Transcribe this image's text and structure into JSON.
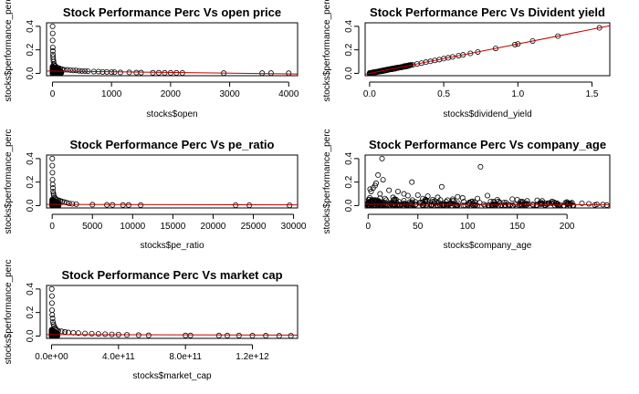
{
  "figure": {
    "background": "#ffffff",
    "fit_line_color": "#c00000",
    "point_color": "#000000",
    "point_style": "open-circle"
  },
  "chart_data": [
    {
      "type": "scatter",
      "title": "Stock Performance Perc Vs open price",
      "xlabel": "stocks$open",
      "ylabel": "stocks$performance_perc",
      "xlim": [
        -100,
        4150
      ],
      "ylim": [
        -0.02,
        0.43
      ],
      "xticks": [
        0,
        1000,
        2000,
        3000,
        4000
      ],
      "xtick_labels": [
        "0",
        "1000",
        "2000",
        "3000",
        "4000"
      ],
      "yticks": [
        0,
        0.2,
        0.4
      ],
      "ytick_labels": [
        "0.0",
        "0.2",
        "0.4"
      ],
      "dense_band": {
        "description": "many overlapping points",
        "x_range": [
          0,
          150
        ],
        "y_range": [
          0,
          0.06
        ]
      },
      "points": [
        [
          2,
          0.4
        ],
        [
          4,
          0.34
        ],
        [
          3,
          0.28
        ],
        [
          5,
          0.22
        ],
        [
          6,
          0.19
        ],
        [
          8,
          0.16
        ],
        [
          10,
          0.14
        ],
        [
          14,
          0.12
        ],
        [
          18,
          0.1
        ],
        [
          25,
          0.08
        ],
        [
          30,
          0.075
        ],
        [
          40,
          0.065
        ],
        [
          60,
          0.055
        ],
        [
          80,
          0.05
        ],
        [
          100,
          0.045
        ],
        [
          130,
          0.04
        ],
        [
          160,
          0.035
        ],
        [
          200,
          0.03
        ],
        [
          250,
          0.03
        ],
        [
          300,
          0.028
        ],
        [
          350,
          0.025
        ],
        [
          400,
          0.025
        ],
        [
          450,
          0.022
        ],
        [
          500,
          0.02
        ],
        [
          550,
          0.02
        ],
        [
          600,
          0.018
        ],
        [
          700,
          0.015
        ],
        [
          780,
          0.015
        ],
        [
          850,
          0.012
        ],
        [
          920,
          0.012
        ],
        [
          1000,
          0.01
        ],
        [
          1050,
          0.01
        ],
        [
          1150,
          0.008
        ],
        [
          1300,
          0.008
        ],
        [
          1420,
          0.006
        ],
        [
          1500,
          0.006
        ],
        [
          1700,
          0.005
        ],
        [
          1800,
          0.005
        ],
        [
          1900,
          0.004
        ],
        [
          2000,
          0.004
        ],
        [
          2100,
          0.004
        ],
        [
          2200,
          0.003
        ],
        [
          2900,
          0.002
        ],
        [
          3550,
          0.002
        ],
        [
          3700,
          0.002
        ],
        [
          4000,
          0.001
        ]
      ],
      "fit_line": [
        [
          -100,
          0.02
        ],
        [
          4150,
          -0.005
        ]
      ]
    },
    {
      "type": "scatter",
      "title": "Stock Performance Perc Vs Divident yield",
      "xlabel": "stocks$dividend_yield",
      "ylabel": "stocks$performance_perc",
      "xlim": [
        -0.03,
        1.62
      ],
      "ylim": [
        -0.02,
        0.43
      ],
      "xticks": [
        0,
        0.5,
        1.0,
        1.5
      ],
      "xtick_labels": [
        "0.0",
        "0.5",
        "1.0",
        "1.5"
      ],
      "yticks": [
        0,
        0.2,
        0.4
      ],
      "ytick_labels": [
        "0.0",
        "0.2",
        "0.4"
      ],
      "dense_band": {
        "description": "points along the fitted line",
        "x_range": [
          0,
          0.28
        ],
        "y_range": [
          0,
          0.07
        ]
      },
      "points": [
        [
          0.02,
          0.005
        ],
        [
          0.05,
          0.012
        ],
        [
          0.08,
          0.02
        ],
        [
          0.1,
          0.025
        ],
        [
          0.13,
          0.033
        ],
        [
          0.16,
          0.04
        ],
        [
          0.2,
          0.05
        ],
        [
          0.23,
          0.058
        ],
        [
          0.26,
          0.065
        ],
        [
          0.29,
          0.072
        ],
        [
          0.32,
          0.08
        ],
        [
          0.35,
          0.087
        ],
        [
          0.38,
          0.095
        ],
        [
          0.41,
          0.102
        ],
        [
          0.44,
          0.11
        ],
        [
          0.47,
          0.117
        ],
        [
          0.5,
          0.125
        ],
        [
          0.53,
          0.132
        ],
        [
          0.56,
          0.14
        ],
        [
          0.6,
          0.15
        ],
        [
          0.63,
          0.157
        ],
        [
          0.68,
          0.17
        ],
        [
          0.73,
          0.182
        ],
        [
          0.85,
          0.212
        ],
        [
          0.98,
          0.245
        ],
        [
          1.0,
          0.25
        ],
        [
          1.1,
          0.275
        ],
        [
          1.27,
          0.317
        ],
        [
          1.55,
          0.387
        ]
      ],
      "fit_line": [
        [
          -0.03,
          -0.0075
        ],
        [
          1.62,
          0.405
        ]
      ]
    },
    {
      "type": "scatter",
      "title": "Stock Performance Perc Vs pe_ratio",
      "xlabel": "stocks$pe_ratio",
      "ylabel": "stocks$performance_perc",
      "xlim": [
        -700,
        30500
      ],
      "ylim": [
        -0.02,
        0.43
      ],
      "xticks": [
        0,
        5000,
        10000,
        15000,
        20000,
        25000,
        30000
      ],
      "xtick_labels": [
        "0",
        "5000",
        "10000",
        "15000",
        "20000",
        "25000",
        "30000"
      ],
      "yticks": [
        0,
        0.2,
        0.4
      ],
      "ytick_labels": [
        "0.0",
        "0.2",
        "0.4"
      ],
      "dense_band": {
        "description": "many overlapping points",
        "x_range": [
          0,
          800
        ],
        "y_range": [
          0,
          0.06
        ]
      },
      "points": [
        [
          10,
          0.4
        ],
        [
          20,
          0.34
        ],
        [
          30,
          0.28
        ],
        [
          40,
          0.22
        ],
        [
          60,
          0.18
        ],
        [
          90,
          0.15
        ],
        [
          120,
          0.12
        ],
        [
          160,
          0.1
        ],
        [
          200,
          0.085
        ],
        [
          300,
          0.07
        ],
        [
          400,
          0.06
        ],
        [
          600,
          0.05
        ],
        [
          800,
          0.045
        ],
        [
          1000,
          0.04
        ],
        [
          1200,
          0.035
        ],
        [
          1500,
          0.03
        ],
        [
          1800,
          0.025
        ],
        [
          2100,
          0.02
        ],
        [
          2500,
          0.015
        ],
        [
          3000,
          0.012
        ],
        [
          5000,
          0.008
        ],
        [
          6800,
          0.006
        ],
        [
          7500,
          0.006
        ],
        [
          8800,
          0.005
        ],
        [
          9500,
          0.005
        ],
        [
          11000,
          0.004
        ],
        [
          22800,
          0.003
        ],
        [
          24500,
          0.003
        ],
        [
          29500,
          0.002
        ]
      ],
      "fit_line": [
        [
          -700,
          0.01
        ],
        [
          30500,
          0.006
        ]
      ]
    },
    {
      "type": "scatter",
      "title": "Stock Performance Perc Vs company_age",
      "xlabel": "stocks$company_age",
      "ylabel": "stocks$performance_perc",
      "xlim": [
        -3,
        243
      ],
      "ylim": [
        -0.02,
        0.43
      ],
      "xticks": [
        0,
        50,
        100,
        150,
        200
      ],
      "xtick_labels": [
        "0",
        "50",
        "100",
        "150",
        "200"
      ],
      "yticks": [
        0,
        0.2,
        0.4
      ],
      "ytick_labels": [
        "0.0",
        "0.2",
        "0.4"
      ],
      "dense_band": {
        "description": "many overlapping points",
        "x_range": [
          0,
          210
        ],
        "y_range": [
          0,
          0.07
        ]
      },
      "points": [
        [
          14,
          0.4
        ],
        [
          113,
          0.33
        ],
        [
          10,
          0.26
        ],
        [
          15,
          0.22
        ],
        [
          44,
          0.2
        ],
        [
          8,
          0.19
        ],
        [
          7,
          0.17
        ],
        [
          5,
          0.15
        ],
        [
          74,
          0.16
        ],
        [
          2,
          0.14
        ],
        [
          21,
          0.13
        ],
        [
          30,
          0.12
        ],
        [
          3,
          0.12
        ],
        [
          36,
          0.1
        ],
        [
          50,
          0.09
        ],
        [
          60,
          0.08
        ],
        [
          12,
          0.1
        ],
        [
          40,
          0.085
        ],
        [
          120,
          0.085
        ],
        [
          70,
          0.07
        ],
        [
          90,
          0.075
        ],
        [
          95,
          0.065
        ],
        [
          145,
          0.055
        ],
        [
          150,
          0.05
        ],
        [
          170,
          0.045
        ],
        [
          175,
          0.04
        ],
        [
          185,
          0.035
        ],
        [
          200,
          0.03
        ],
        [
          205,
          0.025
        ],
        [
          215,
          0.02
        ],
        [
          222,
          0.015
        ],
        [
          230,
          0.01
        ],
        [
          236,
          0.008
        ],
        [
          25,
          0.07
        ],
        [
          55,
          0.06
        ],
        [
          85,
          0.055
        ],
        [
          110,
          0.06
        ],
        [
          130,
          0.05
        ],
        [
          160,
          0.04
        ],
        [
          190,
          0.02
        ],
        [
          228,
          0.005
        ],
        [
          240,
          0.004
        ],
        [
          17,
          0.06
        ],
        [
          65,
          0.05
        ]
      ],
      "fit_line": [
        [
          -3,
          0.012
        ],
        [
          243,
          0.008
        ]
      ]
    },
    {
      "type": "scatter",
      "title": "Stock Performance Perc Vs market cap",
      "xlabel": "stocks$market_cap",
      "ylabel": "stocks$performance_perc",
      "xlim": [
        -30000000000.0,
        1470000000000.0
      ],
      "ylim": [
        -0.02,
        0.43
      ],
      "xticks": [
        0,
        400000000000.0,
        800000000000.0,
        1200000000000.0
      ],
      "xtick_labels": [
        "0.0e+00",
        "4.0e+11",
        "8.0e+11",
        "1.2e+12"
      ],
      "yticks": [
        0,
        0.2,
        0.4
      ],
      "ytick_labels": [
        "0.0",
        "0.2",
        "0.4"
      ],
      "dense_band": {
        "description": "many overlapping points",
        "x_range": [
          0,
          35000000000.0
        ],
        "y_range": [
          0,
          0.06
        ]
      },
      "points": [
        [
          1000000000.0,
          0.4
        ],
        [
          2000000000.0,
          0.34
        ],
        [
          2000000000.0,
          0.28
        ],
        [
          3000000000.0,
          0.22
        ],
        [
          4000000000.0,
          0.18
        ],
        [
          6000000000.0,
          0.15
        ],
        [
          8000000000.0,
          0.12
        ],
        [
          11000000000.0,
          0.1
        ],
        [
          15000000000.0,
          0.085
        ],
        [
          20000000000.0,
          0.07
        ],
        [
          25000000000.0,
          0.06
        ],
        [
          30000000000.0,
          0.05
        ],
        [
          40000000000.0,
          0.045
        ],
        [
          60000000000.0,
          0.04
        ],
        [
          80000000000.0,
          0.035
        ],
        [
          100000000000.0,
          0.03
        ],
        [
          130000000000.0,
          0.028
        ],
        [
          160000000000.0,
          0.025
        ],
        [
          200000000000.0,
          0.022
        ],
        [
          240000000000.0,
          0.02
        ],
        [
          280000000000.0,
          0.018
        ],
        [
          320000000000.0,
          0.016
        ],
        [
          360000000000.0,
          0.014
        ],
        [
          400000000000.0,
          0.012
        ],
        [
          450000000000.0,
          0.01
        ],
        [
          520000000000.0,
          0.008
        ],
        [
          580000000000.0,
          0.006
        ],
        [
          800000000000.0,
          0.005
        ],
        [
          830000000000.0,
          0.005
        ],
        [
          1000000000000.0,
          0.004
        ],
        [
          1050000000000.0,
          0.004
        ],
        [
          1120000000000.0,
          0.004
        ],
        [
          1200000000000.0,
          0.003
        ],
        [
          1280000000000.0,
          0.003
        ],
        [
          1360000000000.0,
          0.002
        ],
        [
          1430000000000.0,
          0.002
        ]
      ],
      "fit_line": [
        [
          -30000000000.0,
          0.012
        ],
        [
          1470000000000.0,
          0.008
        ]
      ]
    }
  ]
}
